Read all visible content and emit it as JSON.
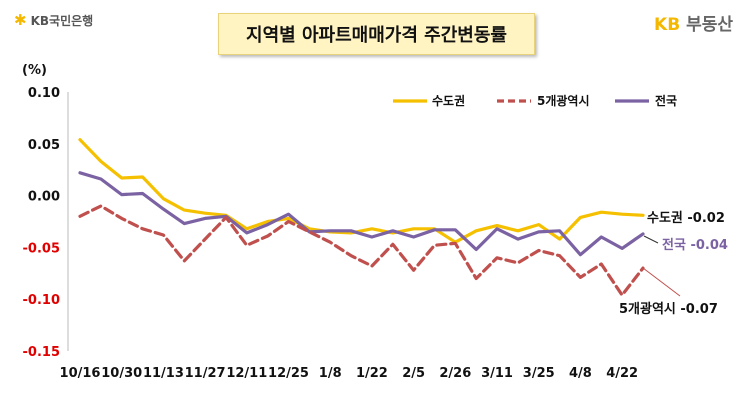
{
  "header": {
    "left_logo": "KB국민은행",
    "title": "지역별 아파트매매가격 주간변동률",
    "right_logo_kb": "KB",
    "right_logo_text": "부동산"
  },
  "colors": {
    "metro": "#f5c000",
    "five": "#c0504d",
    "national": "#7b62a3",
    "negative_tick": "#e00000"
  },
  "chart_data": {
    "type": "line",
    "title": "지역별 아파트매매가격 주간변동률",
    "unit": "(%)",
    "ylim": [
      -0.15,
      0.1
    ],
    "yticks": [
      "0.10",
      "0.05",
      "0.00",
      "-0.05",
      "-0.10",
      "-0.15"
    ],
    "ytick_values": [
      0.1,
      0.05,
      0.0,
      -0.05,
      -0.1,
      -0.15
    ],
    "xtick_labels": [
      "10/16",
      "10/30",
      "11/13",
      "11/27",
      "12/11",
      "12/25",
      "1/8",
      "1/22",
      "2/5",
      "2/26",
      "3/11",
      "3/25",
      "4/8",
      "4/22"
    ],
    "x": [
      "10/16",
      "10/23",
      "10/30",
      "11/6",
      "11/13",
      "11/20",
      "11/27",
      "12/4",
      "12/11",
      "12/18",
      "12/25",
      "1/1",
      "1/8",
      "1/15",
      "1/22",
      "1/29",
      "2/5",
      "2/12",
      "2/26",
      "3/4",
      "3/11",
      "3/18",
      "3/25",
      "4/1",
      "4/8",
      "4/15",
      "4/22",
      "4/29"
    ],
    "legend_position": "top-right",
    "series": [
      {
        "name": "수도권",
        "style": "solid",
        "end_label": "수도권 -0.02",
        "values": [
          0.054,
          0.033,
          0.017,
          0.018,
          -0.003,
          -0.014,
          -0.017,
          -0.019,
          -0.032,
          -0.025,
          -0.022,
          -0.032,
          -0.035,
          -0.036,
          -0.032,
          -0.036,
          -0.032,
          -0.032,
          -0.045,
          -0.034,
          -0.029,
          -0.034,
          -0.028,
          -0.042,
          -0.021,
          -0.016,
          -0.018,
          -0.019
        ]
      },
      {
        "name": "5개광역시",
        "style": "dashed",
        "end_label": "5개광역시 -0.07",
        "values": [
          -0.02,
          -0.01,
          -0.022,
          -0.032,
          -0.038,
          -0.063,
          -0.042,
          -0.021,
          -0.048,
          -0.039,
          -0.025,
          -0.035,
          -0.045,
          -0.058,
          -0.068,
          -0.047,
          -0.072,
          -0.048,
          -0.046,
          -0.08,
          -0.06,
          -0.065,
          -0.053,
          -0.058,
          -0.079,
          -0.066,
          -0.096,
          -0.07
        ]
      },
      {
        "name": "전국",
        "style": "solid",
        "end_label": "전국 -0.04",
        "values": [
          0.022,
          0.016,
          0.001,
          0.002,
          -0.013,
          -0.027,
          -0.022,
          -0.02,
          -0.036,
          -0.028,
          -0.018,
          -0.035,
          -0.034,
          -0.034,
          -0.04,
          -0.034,
          -0.04,
          -0.033,
          -0.033,
          -0.052,
          -0.032,
          -0.042,
          -0.035,
          -0.034,
          -0.057,
          -0.04,
          -0.051,
          -0.037
        ]
      }
    ]
  }
}
